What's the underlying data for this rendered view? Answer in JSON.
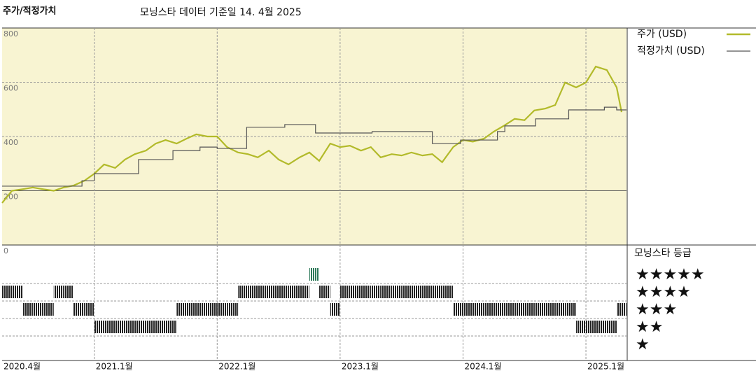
{
  "chart_data": {
    "type": "line",
    "title": "주가/적정가치",
    "subtitle": "모닝스타 데이터 기준일 14. 4월 2025",
    "xlim": [
      2020.25,
      2025.33
    ],
    "xticks": [
      {
        "value": 2020.25,
        "label": "2020.4월"
      },
      {
        "value": 2021.0,
        "label": "2021.1월"
      },
      {
        "value": 2022.0,
        "label": "2022.1월"
      },
      {
        "value": 2023.0,
        "label": "2023.1월"
      },
      {
        "value": 2024.0,
        "label": "2024.1월"
      },
      {
        "value": 2025.0,
        "label": "2025.1월"
      }
    ],
    "ylim": [
      0,
      800
    ],
    "yticks": [
      0,
      200,
      400,
      600,
      800
    ],
    "grid": true,
    "legend": "right",
    "series": [
      {
        "name": "주가 (USD)",
        "color": "#b2ba2a",
        "step": false,
        "x": [
          2020.25,
          2020.33,
          2020.42,
          2020.5,
          2020.58,
          2020.67,
          2020.75,
          2020.83,
          2020.92,
          2021.0,
          2021.08,
          2021.17,
          2021.25,
          2021.33,
          2021.42,
          2021.5,
          2021.58,
          2021.67,
          2021.75,
          2021.83,
          2021.92,
          2022.0,
          2022.08,
          2022.17,
          2022.25,
          2022.33,
          2022.42,
          2022.5,
          2022.58,
          2022.67,
          2022.75,
          2022.83,
          2022.92,
          2023.0,
          2023.08,
          2023.17,
          2023.25,
          2023.33,
          2023.42,
          2023.5,
          2023.58,
          2023.67,
          2023.75,
          2023.83,
          2023.92,
          2024.0,
          2024.08,
          2024.17,
          2024.25,
          2024.33,
          2024.42,
          2024.5,
          2024.58,
          2024.67,
          2024.75,
          2024.83,
          2024.92,
          2025.0,
          2025.08,
          2025.17,
          2025.25,
          2025.29
        ],
        "values": [
          155,
          200,
          206,
          212,
          206,
          200,
          212,
          219,
          237,
          263,
          297,
          284,
          315,
          335,
          348,
          374,
          387,
          374,
          392,
          408,
          400,
          400,
          361,
          341,
          335,
          323,
          348,
          315,
          297,
          323,
          341,
          310,
          374,
          361,
          366,
          348,
          361,
          323,
          335,
          330,
          341,
          330,
          335,
          305,
          361,
          387,
          381,
          392,
          418,
          439,
          465,
          460,
          496,
          503,
          516,
          599,
          581,
          599,
          658,
          645,
          581,
          490
        ]
      },
      {
        "name": "적정가치 (USD)",
        "color": "#555555",
        "step": true,
        "x": [
          2020.25,
          2020.9,
          2021.0,
          2021.36,
          2021.64,
          2021.86,
          2022.0,
          2022.24,
          2022.55,
          2022.8,
          2023.26,
          2023.75,
          2023.98,
          2024.28,
          2024.34,
          2024.59,
          2024.86,
          2025.15,
          2025.25
        ],
        "values": [
          217,
          237,
          263,
          315,
          348,
          361,
          356,
          434,
          444,
          413,
          418,
          374,
          387,
          418,
          439,
          465,
          498,
          508,
          498
        ]
      }
    ],
    "ratings": {
      "title": "모닝스타 등급",
      "labels": [
        "★★★★★",
        "★★★★",
        "★★★",
        "★★",
        "★"
      ],
      "colors": [
        "#222222",
        "#222222",
        "#222222",
        "#222222",
        "#2f7a5a"
      ],
      "x": [
        2020.25,
        2020.33,
        2020.42,
        2020.5,
        2020.58,
        2020.67,
        2020.75,
        2020.83,
        2020.92,
        2021.0,
        2021.08,
        2021.17,
        2021.25,
        2021.33,
        2021.42,
        2021.5,
        2021.58,
        2021.67,
        2021.75,
        2021.83,
        2021.92,
        2022.0,
        2022.08,
        2022.17,
        2022.25,
        2022.33,
        2022.42,
        2022.5,
        2022.58,
        2022.67,
        2022.75,
        2022.83,
        2022.92,
        2023.0,
        2023.08,
        2023.17,
        2023.25,
        2023.33,
        2023.42,
        2023.5,
        2023.58,
        2023.67,
        2023.75,
        2023.83,
        2023.92,
        2024.0,
        2024.08,
        2024.17,
        2024.25,
        2024.33,
        2024.42,
        2024.5,
        2024.58,
        2024.67,
        2024.75,
        2024.83,
        2024.92,
        2025.0,
        2025.08,
        2025.17,
        2025.25
      ],
      "values": [
        4,
        4,
        3,
        3,
        3,
        4,
        4,
        3,
        3,
        2,
        2,
        2,
        2,
        2,
        2,
        2,
        2,
        3,
        3,
        3,
        3,
        3,
        3,
        4,
        4,
        4,
        4,
        4,
        4,
        4,
        5,
        4,
        3,
        4,
        4,
        4,
        4,
        4,
        4,
        4,
        4,
        4,
        4,
        4,
        3,
        3,
        3,
        3,
        3,
        3,
        3,
        3,
        3,
        3,
        3,
        3,
        2,
        2,
        2,
        2,
        3
      ]
    }
  }
}
